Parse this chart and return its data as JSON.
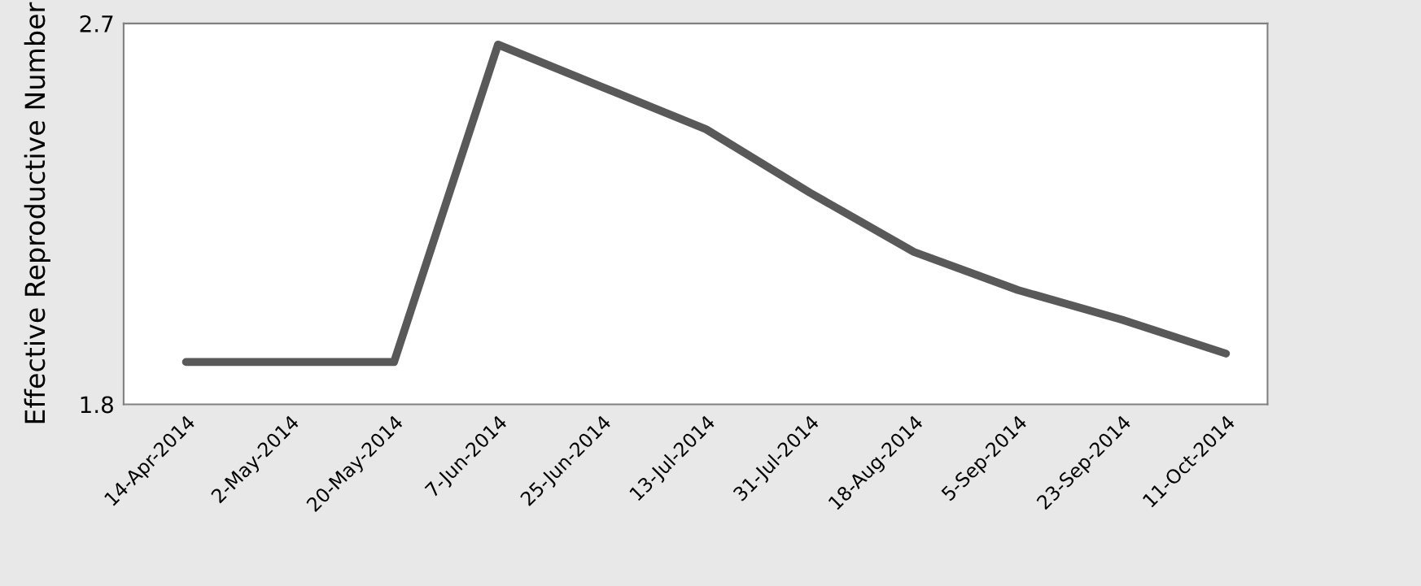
{
  "chart_data": {
    "type": "line",
    "ylabel": "Effective Reproductive Number",
    "categories": [
      "14-Apr-2014",
      "2-May-2014",
      "20-May-2014",
      "7-Jun-2014",
      "25-Jun-2014",
      "13-Jul-2014",
      "31-Jul-2014",
      "18-Aug-2014",
      "5-Sep-2014",
      "23-Sep-2014",
      "11-Oct-2014"
    ],
    "series": [
      {
        "color": "#595959",
        "values": [
          1.9,
          1.9,
          1.9,
          2.65,
          2.55,
          2.45,
          2.3,
          2.16,
          2.07,
          2.0,
          1.92
        ]
      }
    ],
    "ylim": [
      1.8,
      2.7
    ],
    "yticks": [
      1.8,
      2.7
    ],
    "grid": false,
    "legend": false,
    "marker": "none",
    "line_style": "solid"
  }
}
